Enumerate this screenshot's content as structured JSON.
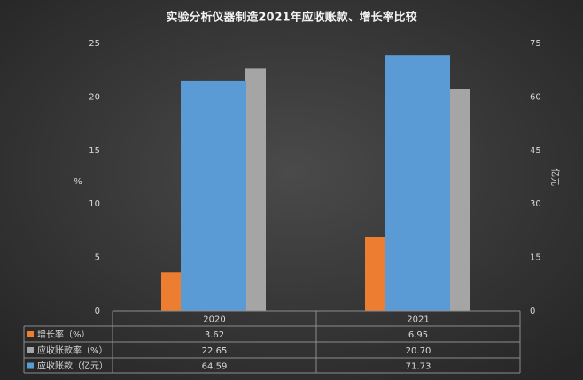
{
  "chart_data": {
    "type": "bar",
    "title": "实验分析仪器制造2021年应收账款、增长率比较",
    "categories": [
      "2020",
      "2021"
    ],
    "series": [
      {
        "name": "增长率（%）",
        "color": "#ed7d31",
        "values": [
          3.62,
          6.95
        ]
      },
      {
        "name": "应收账款率（%）",
        "color": "#a5a5a5",
        "values": [
          22.65,
          20.7
        ],
        "value_labels": [
          "22.65",
          "20.70"
        ]
      },
      {
        "name": "应收账款（亿元）",
        "color": "#5b9bd5",
        "values": [
          64.59,
          71.73
        ],
        "axis": "y2"
      }
    ],
    "ylabel": "%",
    "y2label": "亿元",
    "ylim": [
      0,
      25
    ],
    "yticks": [
      0,
      5,
      10,
      15,
      20,
      25
    ],
    "y2lim": [
      0,
      75
    ],
    "y2ticks": [
      0,
      15,
      30,
      45,
      60,
      75
    ],
    "grid": false
  }
}
